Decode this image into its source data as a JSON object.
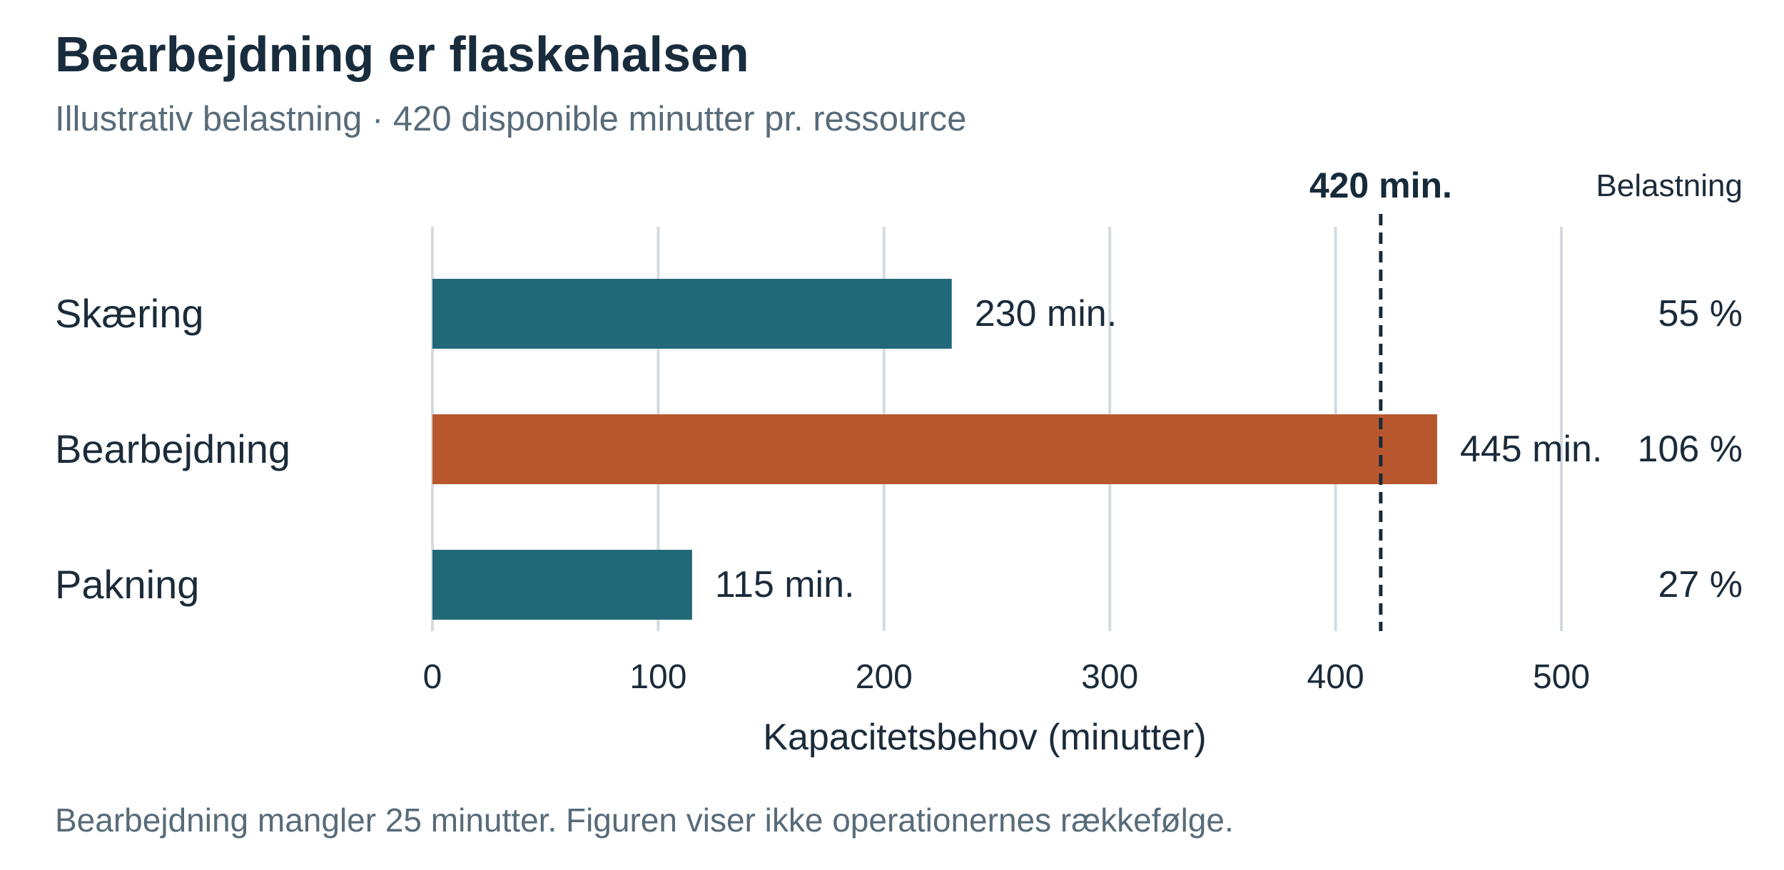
{
  "title": "Bearbejdning er flaskehalsen",
  "subtitle": "Illustrativ belastning · 420 disponible minutter pr. ressource",
  "footnote": "Bearbejdning mangler 25 minutter. Figuren viser ikke operationernes rækkefølge.",
  "colors": {
    "normal": "#216878",
    "bottleneck": "#b8572e",
    "grid": "#d3dae0",
    "text": "#1b2b3a",
    "muted": "#586b79"
  },
  "chart_data": {
    "type": "bar",
    "orientation": "horizontal",
    "categories": [
      "Skæring",
      "Bearbejdning",
      "Pakning"
    ],
    "values": [
      230,
      445,
      115
    ],
    "value_labels": [
      "230 min.",
      "445 min.",
      "115 min."
    ],
    "load_header": "Belastning",
    "load_labels": [
      "55 %",
      "106 %",
      "27 %"
    ],
    "bottleneck_index": 1,
    "xlabel": "Kapacitetsbehov (minutter)",
    "xlim": [
      0,
      500
    ],
    "xticks": [
      0,
      100,
      200,
      300,
      400,
      500
    ],
    "reference_line": {
      "value": 420,
      "label": "420 min."
    },
    "grid": true
  }
}
